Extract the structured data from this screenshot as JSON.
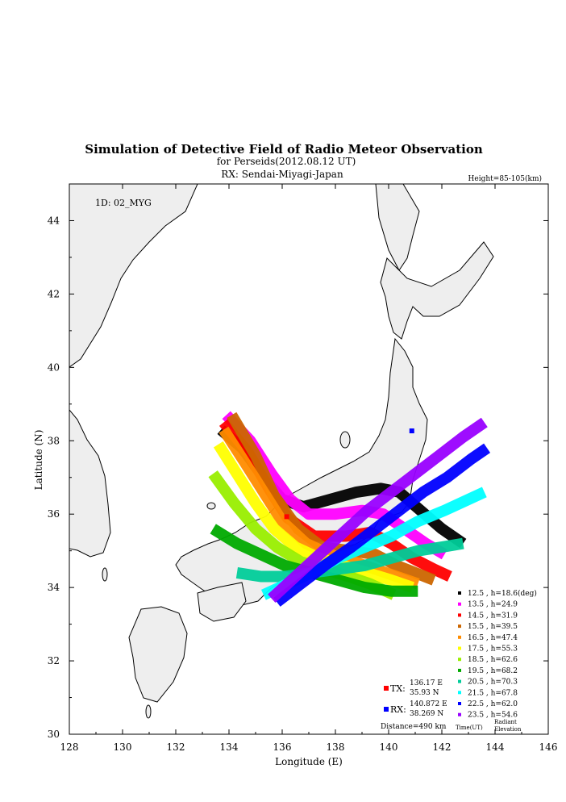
{
  "chart_data": {
    "type": "scatter",
    "title": "Simulation of Detective Field of Radio Meteor Observation",
    "subtitle1": "for Perseids(2012.08.12 UT)",
    "subtitle2": "RX: Sendai-Miyagi-Japan",
    "height_range": "Height=85-105(km)",
    "id_label": "1D: 02_MYG",
    "xlabel": "Longitude (E)",
    "ylabel": "Latitude (N)",
    "xlim": [
      128,
      146
    ],
    "ylim": [
      30,
      45
    ],
    "xticks": [
      "128",
      "130",
      "132",
      "134",
      "136",
      "138",
      "140",
      "142",
      "144",
      "146"
    ],
    "yticks": [
      "30",
      "32",
      "34",
      "36",
      "38",
      "40",
      "42",
      "44"
    ],
    "tx": {
      "label": "TX:",
      "lon": 136.17,
      "lat": 35.93,
      "lon_text": "136.17 E",
      "lat_text": "35.93 N",
      "color": "#ff0000"
    },
    "rx": {
      "label": "RX:",
      "lon": 140.872,
      "lat": 38.269,
      "lon_text": "140.872 E",
      "lat_text": "38.269 N",
      "color": "#0000ff"
    },
    "distance": "Distance=490 km",
    "legend_time_label": "Time(UT)",
    "legend_elev_label1": "Radiant",
    "legend_elev_label2": "Elevation",
    "series": [
      {
        "name": "12.5 ,  h=18.6(deg)",
        "color": "#000000",
        "points": [
          [
            133.7,
            38.3
          ],
          [
            134.5,
            37.8
          ],
          [
            135.3,
            37.0
          ],
          [
            136.0,
            36.4
          ],
          [
            136.8,
            36.2
          ],
          [
            137.8,
            36.4
          ],
          [
            138.8,
            36.6
          ],
          [
            139.7,
            36.7
          ],
          [
            140.4,
            36.6
          ],
          [
            141.2,
            36.1
          ],
          [
            142.0,
            35.6
          ],
          [
            142.8,
            35.2
          ]
        ]
      },
      {
        "name": "13.5 ,  h=24.9",
        "color": "#ff00ff",
        "points": [
          [
            133.9,
            38.7
          ],
          [
            134.8,
            38.0
          ],
          [
            135.6,
            37.1
          ],
          [
            136.3,
            36.4
          ],
          [
            137.0,
            36.0
          ],
          [
            138.0,
            36.0
          ],
          [
            139.0,
            36.1
          ],
          [
            139.8,
            36.0
          ],
          [
            140.6,
            35.6
          ],
          [
            141.4,
            35.2
          ],
          [
            142.1,
            34.9
          ]
        ]
      },
      {
        "name": "14.5 ,  h=31.9",
        "color": "#ff0000",
        "points": [
          [
            133.8,
            38.5
          ],
          [
            134.7,
            37.7
          ],
          [
            135.5,
            36.7
          ],
          [
            136.2,
            35.9
          ],
          [
            137.2,
            35.4
          ],
          [
            138.4,
            35.4
          ],
          [
            139.3,
            35.5
          ],
          [
            140.1,
            35.2
          ],
          [
            140.9,
            34.8
          ],
          [
            141.7,
            34.5
          ],
          [
            142.3,
            34.3
          ]
        ]
      },
      {
        "name": "15.5 ,  h=39.5",
        "color": "#cc6600",
        "points": [
          [
            134.1,
            38.7
          ],
          [
            135.0,
            37.6
          ],
          [
            135.7,
            36.5
          ],
          [
            136.6,
            35.6
          ],
          [
            137.5,
            35.1
          ],
          [
            138.6,
            35.0
          ],
          [
            139.5,
            34.9
          ],
          [
            140.3,
            34.6
          ],
          [
            141.0,
            34.4
          ],
          [
            141.7,
            34.2
          ]
        ]
      },
      {
        "name": "16.5 ,  h=47.4",
        "color": "#ff8c00",
        "points": [
          [
            133.8,
            38.3
          ],
          [
            134.6,
            37.4
          ],
          [
            135.3,
            36.6
          ],
          [
            136.0,
            35.8
          ],
          [
            136.9,
            35.2
          ],
          [
            137.8,
            34.9
          ],
          [
            138.7,
            34.7
          ],
          [
            139.5,
            34.5
          ],
          [
            140.3,
            34.3
          ],
          [
            141.1,
            34.1
          ]
        ]
      },
      {
        "name": "17.5 ,  h=55.3",
        "color": "#ffff00",
        "points": [
          [
            133.6,
            37.9
          ],
          [
            134.3,
            37.1
          ],
          [
            135.0,
            36.3
          ],
          [
            135.7,
            35.6
          ],
          [
            136.5,
            35.1
          ],
          [
            137.4,
            34.8
          ],
          [
            138.3,
            34.6
          ],
          [
            139.2,
            34.4
          ],
          [
            140.1,
            34.2
          ],
          [
            140.9,
            34.0
          ]
        ]
      },
      {
        "name": "18.5 ,  h=62.6",
        "color": "#99ee00",
        "points": [
          [
            133.4,
            37.1
          ],
          [
            134.2,
            36.3
          ],
          [
            135.0,
            35.6
          ],
          [
            135.8,
            35.1
          ],
          [
            136.7,
            34.7
          ],
          [
            137.6,
            34.5
          ],
          [
            138.5,
            34.3
          ],
          [
            139.3,
            34.1
          ],
          [
            140.2,
            33.8
          ]
        ]
      },
      {
        "name": "19.5 ,  h=68.2",
        "color": "#00aa00",
        "points": [
          [
            133.4,
            35.6
          ],
          [
            134.3,
            35.2
          ],
          [
            135.2,
            34.9
          ],
          [
            136.1,
            34.6
          ],
          [
            137.1,
            34.4
          ],
          [
            138.1,
            34.2
          ],
          [
            139.1,
            34.0
          ],
          [
            140.1,
            33.9
          ],
          [
            141.1,
            33.9
          ]
        ]
      },
      {
        "name": "20.5 ,  h=70.3",
        "color": "#00cc99",
        "points": [
          [
            134.3,
            34.4
          ],
          [
            135.2,
            34.3
          ],
          [
            136.1,
            34.3
          ],
          [
            137.1,
            34.4
          ],
          [
            138.1,
            34.5
          ],
          [
            139.1,
            34.6
          ],
          [
            140.1,
            34.8
          ],
          [
            141.1,
            35.0
          ],
          [
            142.0,
            35.1
          ],
          [
            142.8,
            35.2
          ]
        ]
      },
      {
        "name": "21.5 ,  h=67.8",
        "color": "#00ffff",
        "points": [
          [
            135.3,
            33.8
          ],
          [
            136.2,
            34.1
          ],
          [
            137.1,
            34.4
          ],
          [
            138.1,
            34.8
          ],
          [
            139.1,
            35.1
          ],
          [
            140.1,
            35.4
          ],
          [
            141.1,
            35.8
          ],
          [
            142.1,
            36.1
          ],
          [
            143.0,
            36.4
          ],
          [
            143.6,
            36.6
          ]
        ]
      },
      {
        "name": "22.5 ,  h=62.0",
        "color": "#0000ff",
        "points": [
          [
            135.8,
            33.6
          ],
          [
            136.7,
            34.1
          ],
          [
            137.6,
            34.6
          ],
          [
            138.6,
            35.1
          ],
          [
            139.5,
            35.6
          ],
          [
            140.4,
            36.1
          ],
          [
            141.3,
            36.6
          ],
          [
            142.2,
            37.0
          ],
          [
            143.1,
            37.5
          ],
          [
            143.7,
            37.8
          ]
        ]
      },
      {
        "name": "23.5 ,  h=54.6",
        "color": "#9900ff",
        "points": [
          [
            135.6,
            33.7
          ],
          [
            136.5,
            34.3
          ],
          [
            137.4,
            34.9
          ],
          [
            138.3,
            35.5
          ],
          [
            139.2,
            36.1
          ],
          [
            140.1,
            36.6
          ],
          [
            141.0,
            37.1
          ],
          [
            141.9,
            37.6
          ],
          [
            142.8,
            38.1
          ],
          [
            143.6,
            38.5
          ]
        ]
      }
    ]
  }
}
